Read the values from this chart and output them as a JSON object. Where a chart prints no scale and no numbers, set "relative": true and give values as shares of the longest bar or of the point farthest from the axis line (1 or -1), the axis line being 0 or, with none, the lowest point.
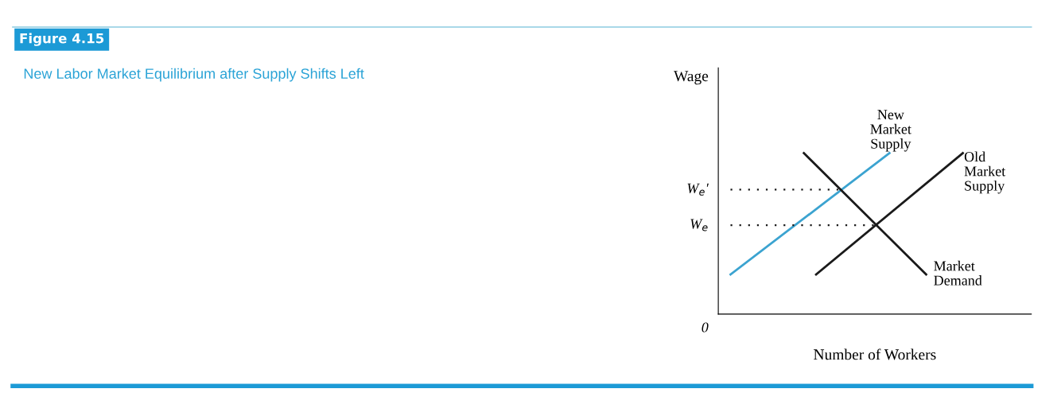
{
  "chart_data": {
    "type": "line",
    "title": "Figure 4.15",
    "subtitle": "New Labor Market Equilibrium after Supply Shifts Left",
    "xlabel": "Number of Workers",
    "ylabel": "Wage",
    "relative": true,
    "categories": [
      null,
      null,
      null,
      null,
      null,
      null,
      null,
      null,
      null,
      null,
      null,
      null,
      null,
      null,
      null,
      null,
      null,
      null,
      null,
      null,
      null
    ],
    "series": [
      {
        "name": "New Market Supply",
        "color": "#3ba3d0",
        "values": [
          null,
          0.246,
          null,
          null,
          null,
          null,
          null,
          null,
          null,
          null,
          null,
          null,
          null,
          null,
          1,
          null,
          null,
          null,
          null,
          null,
          null
        ]
      },
      {
        "name": "Old Market Supply",
        "color": "#1a1a1a",
        "values": [
          null,
          null,
          null,
          null,
          null,
          null,
          null,
          null,
          0.246,
          null,
          null,
          null,
          null,
          null,
          null,
          null,
          null,
          null,
          null,
          null,
          1
        ]
      },
      {
        "name": "Market Demand",
        "color": "#1a1a1a",
        "values": [
          null,
          null,
          null,
          null,
          null,
          null,
          null,
          1,
          null,
          null,
          null,
          null,
          null,
          null,
          null,
          null,
          null,
          0.246,
          null,
          null,
          null
        ]
      },
      {
        "color": "#1a1a1a",
        "line_style": "dotted",
        "values": [
          null,
          0.773,
          null,
          null,
          null,
          null,
          null,
          null,
          null,
          null,
          0.773,
          null,
          null,
          null,
          null,
          null,
          null,
          null,
          null,
          null,
          null
        ]
      },
      {
        "color": "#1a1a1a",
        "line_style": "dotted",
        "values": [
          null,
          0.552,
          null,
          null,
          null,
          null,
          null,
          null,
          null,
          null,
          null,
          null,
          null,
          0.552,
          null,
          null,
          null,
          null,
          null,
          null,
          null
        ]
      }
    ],
    "annotations": [
      "W$_{e}$′",
      "W$_{e}$",
      "0"
    ]
  }
}
